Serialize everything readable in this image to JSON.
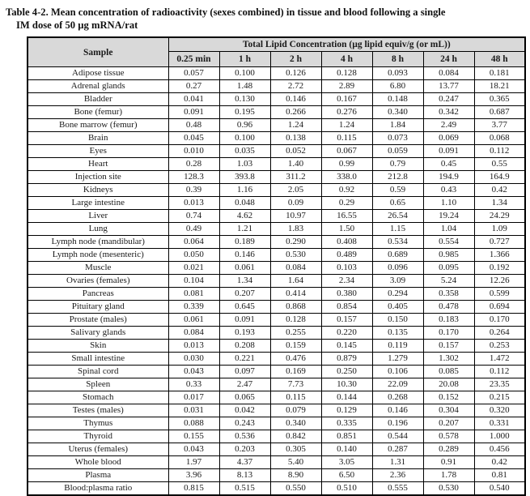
{
  "title": {
    "line1": "Table 4-2. Mean concentration of radioactivity (sexes combined) in tissue and blood following a single",
    "line2": "IM dose of 50 µg mRNA/rat"
  },
  "colors": {
    "header_bg": "#d9d9d9",
    "border": "#000000",
    "text": "#1a1a1a"
  },
  "table": {
    "sample_header": "Sample",
    "group_header": "Total Lipid Concentration (µg lipid equiv/g (or mL))",
    "time_columns": [
      "0.25 min",
      "1 h",
      "2 h",
      "4 h",
      "8 h",
      "24 h",
      "48 h"
    ],
    "rows": [
      {
        "sample": "Adipose tissue",
        "values": [
          "0.057",
          "0.100",
          "0.126",
          "0.128",
          "0.093",
          "0.084",
          "0.181"
        ]
      },
      {
        "sample": "Adrenal glands",
        "values": [
          "0.27",
          "1.48",
          "2.72",
          "2.89",
          "6.80",
          "13.77",
          "18.21"
        ]
      },
      {
        "sample": "Bladder",
        "values": [
          "0.041",
          "0.130",
          "0.146",
          "0.167",
          "0.148",
          "0.247",
          "0.365"
        ]
      },
      {
        "sample": "Bone (femur)",
        "values": [
          "0.091",
          "0.195",
          "0.266",
          "0.276",
          "0.340",
          "0.342",
          "0.687"
        ]
      },
      {
        "sample": "Bone marrow (femur)",
        "values": [
          "0.48",
          "0.96",
          "1.24",
          "1.24",
          "1.84",
          "2.49",
          "3.77"
        ]
      },
      {
        "sample": "Brain",
        "values": [
          "0.045",
          "0.100",
          "0.138",
          "0.115",
          "0.073",
          "0.069",
          "0.068"
        ]
      },
      {
        "sample": "Eyes",
        "values": [
          "0.010",
          "0.035",
          "0.052",
          "0.067",
          "0.059",
          "0.091",
          "0.112"
        ]
      },
      {
        "sample": "Heart",
        "values": [
          "0.28",
          "1.03",
          "1.40",
          "0.99",
          "0.79",
          "0.45",
          "0.55"
        ]
      },
      {
        "sample": "Injection site",
        "values": [
          "128.3",
          "393.8",
          "311.2",
          "338.0",
          "212.8",
          "194.9",
          "164.9"
        ]
      },
      {
        "sample": "Kidneys",
        "values": [
          "0.39",
          "1.16",
          "2.05",
          "0.92",
          "0.59",
          "0.43",
          "0.42"
        ]
      },
      {
        "sample": "Large intestine",
        "values": [
          "0.013",
          "0.048",
          "0.09",
          "0.29",
          "0.65",
          "1.10",
          "1.34"
        ]
      },
      {
        "sample": "Liver",
        "values": [
          "0.74",
          "4.62",
          "10.97",
          "16.55",
          "26.54",
          "19.24",
          "24.29"
        ]
      },
      {
        "sample": "Lung",
        "values": [
          "0.49",
          "1.21",
          "1.83",
          "1.50",
          "1.15",
          "1.04",
          "1.09"
        ]
      },
      {
        "sample": "Lymph node (mandibular)",
        "values": [
          "0.064",
          "0.189",
          "0.290",
          "0.408",
          "0.534",
          "0.554",
          "0.727"
        ]
      },
      {
        "sample": "Lymph node (mesenteric)",
        "values": [
          "0.050",
          "0.146",
          "0.530",
          "0.489",
          "0.689",
          "0.985",
          "1.366"
        ]
      },
      {
        "sample": "Muscle",
        "values": [
          "0.021",
          "0.061",
          "0.084",
          "0.103",
          "0.096",
          "0.095",
          "0.192"
        ]
      },
      {
        "sample": "Ovaries (females)",
        "values": [
          "0.104",
          "1.34",
          "1.64",
          "2.34",
          "3.09",
          "5.24",
          "12.26"
        ]
      },
      {
        "sample": "Pancreas",
        "values": [
          "0.081",
          "0.207",
          "0.414",
          "0.380",
          "0.294",
          "0.358",
          "0.599"
        ]
      },
      {
        "sample": "Pituitary gland",
        "values": [
          "0.339",
          "0.645",
          "0.868",
          "0.854",
          "0.405",
          "0.478",
          "0.694"
        ]
      },
      {
        "sample": "Prostate (males)",
        "values": [
          "0.061",
          "0.091",
          "0.128",
          "0.157",
          "0.150",
          "0.183",
          "0.170"
        ]
      },
      {
        "sample": "Salivary glands",
        "values": [
          "0.084",
          "0.193",
          "0.255",
          "0.220",
          "0.135",
          "0.170",
          "0.264"
        ]
      },
      {
        "sample": "Skin",
        "values": [
          "0.013",
          "0.208",
          "0.159",
          "0.145",
          "0.119",
          "0.157",
          "0.253"
        ]
      },
      {
        "sample": "Small intestine",
        "values": [
          "0.030",
          "0.221",
          "0.476",
          "0.879",
          "1.279",
          "1.302",
          "1.472"
        ]
      },
      {
        "sample": "Spinal cord",
        "values": [
          "0.043",
          "0.097",
          "0.169",
          "0.250",
          "0.106",
          "0.085",
          "0.112"
        ]
      },
      {
        "sample": "Spleen",
        "values": [
          "0.33",
          "2.47",
          "7.73",
          "10.30",
          "22.09",
          "20.08",
          "23.35"
        ]
      },
      {
        "sample": "Stomach",
        "values": [
          "0.017",
          "0.065",
          "0.115",
          "0.144",
          "0.268",
          "0.152",
          "0.215"
        ]
      },
      {
        "sample": "Testes (males)",
        "values": [
          "0.031",
          "0.042",
          "0.079",
          "0.129",
          "0.146",
          "0.304",
          "0.320"
        ]
      },
      {
        "sample": "Thymus",
        "values": [
          "0.088",
          "0.243",
          "0.340",
          "0.335",
          "0.196",
          "0.207",
          "0.331"
        ]
      },
      {
        "sample": "Thyroid",
        "values": [
          "0.155",
          "0.536",
          "0.842",
          "0.851",
          "0.544",
          "0.578",
          "1.000"
        ]
      },
      {
        "sample": "Uterus (females)",
        "values": [
          "0.043",
          "0.203",
          "0.305",
          "0.140",
          "0.287",
          "0.289",
          "0.456"
        ]
      },
      {
        "sample": "Whole blood",
        "values": [
          "1.97",
          "4.37",
          "5.40",
          "3.05",
          "1.31",
          "0.91",
          "0.42"
        ]
      },
      {
        "sample": "Plasma",
        "values": [
          "3.96",
          "8.13",
          "8.90",
          "6.50",
          "2.36",
          "1.78",
          "0.81"
        ]
      },
      {
        "sample": "Blood:plasma ratio",
        "values": [
          "0.815",
          "0.515",
          "0.550",
          "0.510",
          "0.555",
          "0.530",
          "0.540"
        ]
      }
    ]
  }
}
